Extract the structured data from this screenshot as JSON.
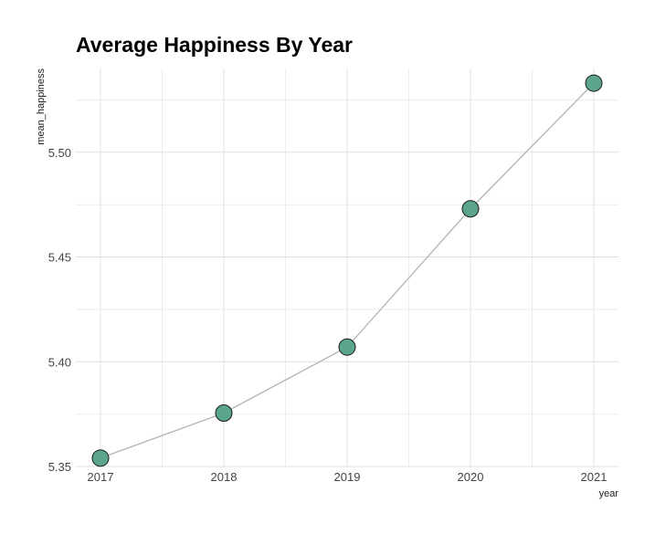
{
  "chart_data": {
    "type": "line",
    "title": "Average Happiness By Year",
    "xlabel": "year",
    "ylabel": "mean_happiness",
    "x": [
      2017,
      2018,
      2019,
      2020,
      2021
    ],
    "series": [
      {
        "values": [
          5.354,
          5.3755,
          5.407,
          5.473,
          5.533
        ]
      }
    ],
    "xlim": [
      2016.8,
      2021.2
    ],
    "ylim": [
      5.35,
      5.54
    ],
    "xticks": [
      "2017",
      "2018",
      "2019",
      "2020",
      "2021"
    ],
    "yticks": [
      "5.35",
      "5.40",
      "5.45",
      "5.50"
    ],
    "grid": true,
    "legend": "none",
    "colors": {
      "line": "#b3b3b3",
      "point_fill": "#5aa58b",
      "point_stroke": "#1a1a1a",
      "grid": "#e0e0e0"
    }
  }
}
